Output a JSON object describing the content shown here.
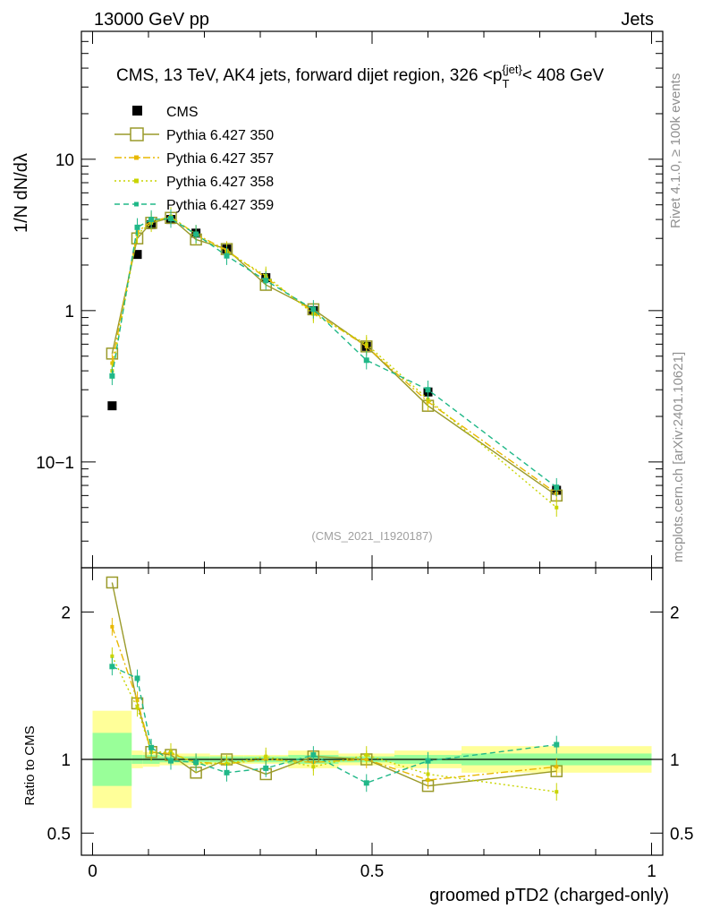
{
  "header": {
    "left": "13000 GeV pp",
    "right": "Jets"
  },
  "side_labels": {
    "rivet": "Rivet 4.1.0, ≥ 100k events",
    "mcplots": "mcplots.cern.ch [arXiv:2401.10621]"
  },
  "chart_data": {
    "type": "line",
    "title": "CMS, 13 TeV, AK4 jets, forward dijet region, 326 <p",
    "title_sub": "T",
    "title_sup": "{jet}",
    "title_end": "< 408 GeV",
    "watermark": "(CMS_2021_I1920187)",
    "xlabel": "groomed pTD2 (charged-only)",
    "ylabel_main": "1/N dN/dλ",
    "ylabel_ratio": "Ratio to CMS",
    "xlim": [
      -0.02,
      1.02
    ],
    "ylim_main": [
      0.02,
      70
    ],
    "ylim_ratio": [
      0.35,
      2.3
    ],
    "yscale_main": "log",
    "xticks": [
      "0",
      "0.5",
      "1"
    ],
    "yticks_main": [
      "10−1",
      "1",
      "10"
    ],
    "yticks_ratio": [
      "0.5",
      "1",
      "2"
    ],
    "x": [
      0.035,
      0.08,
      0.105,
      0.14,
      0.185,
      0.24,
      0.31,
      0.395,
      0.49,
      0.6,
      0.83
    ],
    "bin_edges": [
      0,
      0.07,
      0.09,
      0.12,
      0.16,
      0.21,
      0.27,
      0.35,
      0.44,
      0.54,
      0.66,
      1.0
    ],
    "band_inner": [
      0.18,
      0.03,
      0.03,
      0.02,
      0.02,
      0.02,
      0.02,
      0.03,
      0.02,
      0.03,
      0.04
    ],
    "band_outer": [
      0.33,
      0.06,
      0.05,
      0.04,
      0.04,
      0.03,
      0.03,
      0.06,
      0.04,
      0.06,
      0.09
    ],
    "series": [
      {
        "name": "CMS",
        "color": "#000000",
        "style": "data",
        "values": [
          0.235,
          2.35,
          3.7,
          4.0,
          3.25,
          2.55,
          1.65,
          1.0,
          0.58,
          0.29,
          0.065
        ],
        "ratio": [
          1,
          1,
          1,
          1,
          1,
          1,
          1,
          1,
          1,
          1,
          1
        ]
      },
      {
        "name": "Pythia 6.427 350",
        "color": "#9a9a2a",
        "style": "solid-square",
        "values": [
          0.52,
          3.0,
          3.8,
          4.1,
          2.95,
          2.55,
          1.48,
          1.02,
          0.58,
          0.235,
          0.06
        ],
        "ratio": [
          2.2,
          1.38,
          1.05,
          1.03,
          0.91,
          1.0,
          0.9,
          1.02,
          1.0,
          0.82,
          0.92
        ]
      },
      {
        "name": "Pythia 6.427 357",
        "color": "#e8b800",
        "style": "dashdot",
        "values": [
          0.45,
          3.3,
          3.9,
          4.15,
          3.2,
          2.5,
          1.65,
          0.98,
          0.58,
          0.25,
          0.062
        ],
        "ratio": [
          1.9,
          1.4,
          1.05,
          1.04,
          0.98,
          0.97,
          1.0,
          0.98,
          1.0,
          0.86,
          0.95
        ]
      },
      {
        "name": "Pythia 6.427 358",
        "color": "#c8d400",
        "style": "dotted",
        "values": [
          0.4,
          3.2,
          3.8,
          4.2,
          3.15,
          2.45,
          1.7,
          0.95,
          0.6,
          0.26,
          0.05
        ],
        "ratio": [
          1.7,
          1.35,
          1.05,
          1.05,
          0.97,
          0.97,
          1.02,
          0.95,
          1.03,
          0.9,
          0.78
        ]
      },
      {
        "name": "Pythia 6.427 359",
        "color": "#20b888",
        "style": "dashed",
        "values": [
          0.37,
          3.55,
          4.0,
          4.05,
          3.2,
          2.3,
          1.58,
          1.02,
          0.47,
          0.3,
          0.068
        ],
        "ratio": [
          1.63,
          1.55,
          1.08,
          0.99,
          0.98,
          0.91,
          0.94,
          1.03,
          0.84,
          0.99,
          1.1
        ]
      }
    ]
  }
}
